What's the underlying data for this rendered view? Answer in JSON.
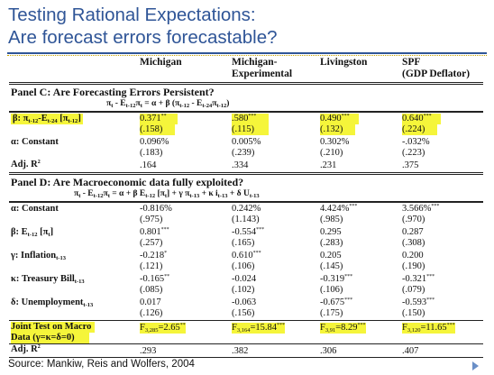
{
  "title": {
    "line1": "Testing Rational Expectations:",
    "line2": "Are forecast errors forecastable?"
  },
  "columns": {
    "c1": "Michigan",
    "c2a": "Michigan-",
    "c2b": "Experimental",
    "c3": "Livingston",
    "c4a": "SPF",
    "c4b": "(GDP Deflator)"
  },
  "panel_c": {
    "title": "Panel C: Are Forecasting Errors Persistent?",
    "formula": "πt - Et-12πt = α + β (πt-12 - Et-24πt-12)",
    "rows": {
      "beta": {
        "label": "β: πt-12-Et-24 [πt-12]",
        "c1": "0.371",
        "c1s": "**",
        "c1se": "(.158)",
        "c2": ".580",
        "c2s": "***",
        "c2se": "(.115)",
        "c3": "0.490",
        "c3s": "***",
        "c3se": "(.132)",
        "c4": "0.640",
        "c4s": "***",
        "c4se": "(.224)"
      },
      "alpha": {
        "label": "α: Constant",
        "c1": "0.096%",
        "c1se": "(.183)",
        "c2": "0.005%",
        "c2se": "(.239)",
        "c3": "0.302%",
        "c3se": "(.210)",
        "c4": "-.032%",
        "c4se": "(.223)"
      },
      "adjr2": {
        "label": "Adj. R",
        "c1": ".164",
        "c2": ".334",
        "c3": ".231",
        "c4": ".375"
      }
    }
  },
  "panel_d": {
    "title": "Panel D: Are Macroeconomic data fully exploited?",
    "formula": "πt - Et-12πt = α + β Et-12 [πt] + γ πt-13 + κ it-13 + δ Ut-13",
    "rows": {
      "alpha": {
        "label": "α: Constant",
        "c1": "-0.816%",
        "c1se": "(.975)",
        "c2": "0.242%",
        "c2se": "(1.143)",
        "c3": "4.424%",
        "c3s": "***",
        "c3se": "(.985)",
        "c4": "3.566%",
        "c4s": "***",
        "c4se": "(.970)"
      },
      "beta": {
        "label": "β: Et-12 [πt]",
        "c1": "0.801",
        "c1s": "***",
        "c1se": "(.257)",
        "c2": "-0.554",
        "c2s": "***",
        "c2se": "(.165)",
        "c3": "0.295",
        "c3se": "(.283)",
        "c4": "0.287",
        "c4se": "(.308)"
      },
      "gamma": {
        "label": "γ: Inflationt-13",
        "c1": "-0.218",
        "c1s": "*",
        "c1se": "(.121)",
        "c2": "0.610",
        "c2s": "***",
        "c2se": "(.106)",
        "c3": "0.205",
        "c3se": "(.145)",
        "c4": "0.200",
        "c4se": "(.190)"
      },
      "kappa": {
        "label": "κ: Treasury Billt-13",
        "c1": "-0.165",
        "c1s": "**",
        "c1se": "(.085)",
        "c2": "-0.024",
        "c2se": "(.102)",
        "c3": "-0.319",
        "c3s": "***",
        "c3se": "(.106)",
        "c4": "-0.321",
        "c4s": "***",
        "c4se": "(.079)"
      },
      "delta": {
        "label": "δ: Unemploymentt-13",
        "c1": "0.017",
        "c1se": "(.126)",
        "c2": "-0.063",
        "c2se": "(.156)",
        "c3": "-0.675",
        "c3s": "***",
        "c3se": "(.175)",
        "c4": "-0.593",
        "c4s": "***",
        "c4se": "(.150)"
      },
      "joint": {
        "label1": "Joint Test on Macro",
        "label2": "Data (γ=κ=δ=0)",
        "c1": "F3,285=2.65",
        "c1s": "**",
        "c2": "F3,164=15.84",
        "c2s": "***",
        "c3": "F3,91=8.29",
        "c3s": "***",
        "c4": "F3,120=11.65",
        "c4s": "***"
      },
      "adjr2": {
        "label": "Adj. R",
        "c1": ".293",
        "c2": ".382",
        "c3": ".306",
        "c4": ".407"
      }
    }
  },
  "source": "Source: Mankiw, Reis and Wolfers, 2004",
  "colors": {
    "title": "#2f5597",
    "highlight": "#f5f53a",
    "nav": "#6a8fc7"
  },
  "icons": {
    "nav": "next-slide-arrow-icon"
  }
}
